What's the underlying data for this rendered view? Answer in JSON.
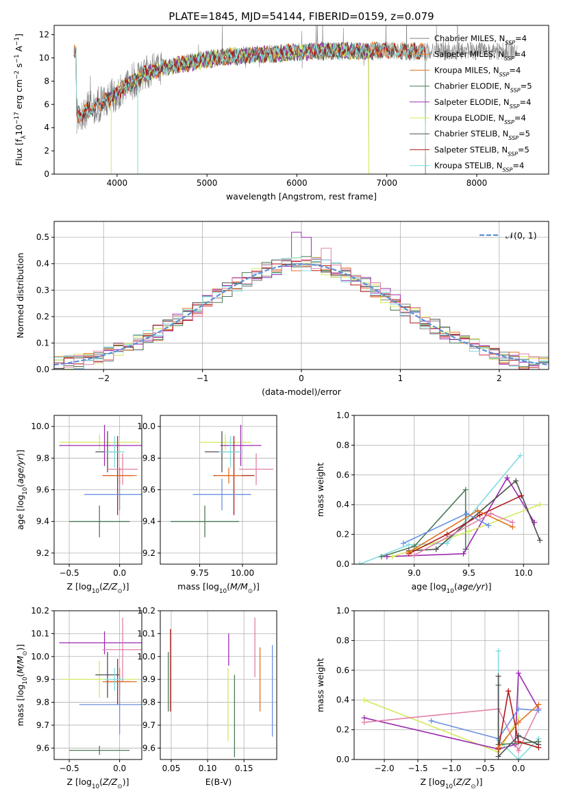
{
  "figure_title": "PLATE=1845, MJD=54144, FIBERID=0159, z=0.079",
  "colors": {
    "Chabrier MILES": "#808080",
    "Salpeter MILES": "#e68a2a",
    "Kroupa MILES": "#e07020",
    "Chabrier ELODIE": "#4a7a55",
    "Salpeter ELODIE": "#9a2ab0",
    "Kroupa ELODIE": "#d4e85a",
    "Chabrier STELIB": "#4d4d4d",
    "Salpeter STELIB": "#b01818",
    "Kroupa STELIB": "#7fdce0",
    "gaussian": "#5a8fd8",
    "extra_pink": "#e080a8",
    "extra_blue": "#6890e0"
  },
  "chart_data": [
    {
      "id": "spectrum",
      "type": "line",
      "title": "",
      "xlabel": "wavelength [Angstrom, rest frame]",
      "ylabel": "Flux [f_λ10^-17 erg cm^-2 s^-1 A^-1]",
      "xlim": [
        3300,
        8800
      ],
      "ylim": [
        0,
        12.8
      ],
      "xticks": [
        4000,
        5000,
        6000,
        7000,
        8000
      ],
      "yticks": [
        0,
        2,
        4,
        6,
        8,
        10,
        12
      ],
      "grid": false,
      "legend_position": "right",
      "legend": [
        "Chabrier MILES, N_SSP=4",
        "Salpeter MILES, N_SSP=4",
        "Kroupa MILES, N_SSP=4",
        "Chabrier ELODIE, N_SSP=5",
        "Salpeter ELODIE, N_SSP=4",
        "Kroupa ELODIE, N_SSP=4",
        "Chabrier STELIB, N_SSP=5",
        "Salpeter STELIB, N_SSP=5",
        "Kroupa STELIB, N_SSP=4"
      ],
      "continuum": {
        "x": [
          3550,
          3700,
          3900,
          4100,
          4300,
          4500,
          4800,
          5200,
          5600,
          6000,
          6400,
          6800,
          7200,
          7450
        ],
        "y": [
          5.0,
          5.6,
          6.4,
          7.6,
          8.6,
          9.1,
          9.6,
          10.1,
          10.3,
          10.5,
          10.6,
          10.6,
          10.6,
          10.5
        ]
      }
    },
    {
      "id": "residuals",
      "type": "line",
      "xlabel": "(data-model)/error",
      "ylabel": "Normed distribution",
      "xlim": [
        -2.5,
        2.5
      ],
      "ylim": [
        0,
        0.56
      ],
      "xticks": [
        -2,
        -1,
        0,
        1,
        2
      ],
      "yticks": [
        0.0,
        0.1,
        0.2,
        0.3,
        0.4,
        0.5
      ],
      "grid": true,
      "legend_position": "top-right",
      "legend": [
        "𝒩(0, 1)"
      ],
      "gaussian": {
        "mean": 0,
        "sigma": 1
      }
    },
    {
      "id": "age_vs_Z",
      "type": "scatter",
      "xlabel": "Z [log10(Z/Z⊙)]",
      "ylabel": "age [log10(age/yr)]",
      "xlim": [
        -0.65,
        0.22
      ],
      "ylim": [
        9.13,
        10.07
      ],
      "xticks": [
        -0.5,
        0.0
      ],
      "yticks": [
        9.2,
        9.4,
        9.6,
        9.8,
        10.0
      ],
      "grid": true,
      "points": [
        {
          "name": "Kroupa ELODIE",
          "x": -0.2,
          "y": 9.9,
          "xerr": 0.4,
          "yerr": 0.05
        },
        {
          "name": "Salpeter ELODIE",
          "x": -0.15,
          "y": 9.88,
          "xerr": 0.45,
          "yerr": 0.13
        },
        {
          "name": "Chabrier ELODIE",
          "x": -0.2,
          "y": 9.4,
          "xerr": 0.3,
          "yerr": 0.1
        },
        {
          "name": "Chabrier STELIB",
          "x": -0.12,
          "y": 9.84,
          "xerr": 0.12,
          "yerr": 0.13
        },
        {
          "name": "Salpeter STELIB",
          "x": -0.02,
          "y": 9.69,
          "xerr": 0.15,
          "yerr": 0.25
        },
        {
          "name": "extra_blue",
          "x": 0.0,
          "y": 9.57,
          "xerr": 0.35,
          "yerr": 0.1
        },
        {
          "name": "extra_pink",
          "x": 0.03,
          "y": 9.73,
          "xerr": 0.15,
          "yerr": 0.1
        },
        {
          "name": "Kroupa MILES",
          "x": 0.0,
          "y": 9.69,
          "xerr": 0.17,
          "yerr": 0.05
        },
        {
          "name": "Kroupa STELIB",
          "x": -0.05,
          "y": 9.84,
          "xerr": 0.1,
          "yerr": 0.1
        }
      ]
    },
    {
      "id": "age_vs_mass",
      "type": "scatter",
      "xlabel": "mass [log10(M/M⊙)]",
      "xlim": [
        9.52,
        10.2
      ],
      "ylim": [
        9.13,
        10.07
      ],
      "xticks": [
        9.75,
        10.0
      ],
      "yticks": [
        9.2,
        9.4,
        9.6,
        9.8,
        10.0
      ],
      "grid": true,
      "points": [
        {
          "name": "Kroupa ELODIE",
          "x": 9.9,
          "y": 9.9,
          "xerr": 0.15,
          "yerr": 0.05
        },
        {
          "name": "Salpeter ELODIE",
          "x": 9.99,
          "y": 9.88,
          "xerr": 0.12,
          "yerr": 0.13
        },
        {
          "name": "Chabrier ELODIE",
          "x": 9.78,
          "y": 9.4,
          "xerr": 0.2,
          "yerr": 0.1
        },
        {
          "name": "Chabrier STELIB",
          "x": 9.88,
          "y": 9.84,
          "xerr": 0.1,
          "yerr": 0.13
        },
        {
          "name": "Salpeter STELIB",
          "x": 9.95,
          "y": 9.69,
          "xerr": 0.12,
          "yerr": 0.25
        },
        {
          "name": "extra_blue",
          "x": 9.88,
          "y": 9.57,
          "xerr": 0.17,
          "yerr": 0.1
        },
        {
          "name": "extra_pink",
          "x": 10.08,
          "y": 9.73,
          "xerr": 0.1,
          "yerr": 0.1
        },
        {
          "name": "Kroupa MILES",
          "x": 9.92,
          "y": 9.69,
          "xerr": 0.08,
          "yerr": 0.05
        },
        {
          "name": "Kroupa STELIB",
          "x": 9.93,
          "y": 9.84,
          "xerr": 0.07,
          "yerr": 0.1
        }
      ]
    },
    {
      "id": "weight_vs_age",
      "type": "line",
      "xlabel": "age [log10(age/yr)]",
      "ylabel": "mass weight",
      "xlim": [
        8.45,
        10.23
      ],
      "ylim": [
        0,
        1.0
      ],
      "xticks": [
        9.0,
        9.5,
        10.0
      ],
      "yticks": [
        0.0,
        0.2,
        0.4,
        0.6,
        0.8,
        1.0
      ],
      "grid": true,
      "series": [
        {
          "name": "Kroupa STELIB",
          "x": [
            8.5,
            8.95,
            9.3,
            9.97
          ],
          "y": [
            0.0,
            0.13,
            0.14,
            0.73
          ]
        },
        {
          "name": "Chabrier ELODIE",
          "x": [
            8.7,
            9.0,
            9.47,
            9.47
          ],
          "y": [
            0.05,
            0.12,
            0.5,
            0.1
          ]
        },
        {
          "name": "Salpeter ELODIE",
          "x": [
            8.75,
            9.45,
            9.85,
            10.1
          ],
          "y": [
            0.05,
            0.07,
            0.58,
            0.28
          ]
        },
        {
          "name": "Kroupa ELODIE",
          "x": [
            8.8,
            9.5,
            10.15
          ],
          "y": [
            0.05,
            0.22,
            0.4
          ]
        },
        {
          "name": "Chabrier STELIB",
          "x": [
            8.95,
            9.2,
            9.93,
            10.15
          ],
          "y": [
            0.09,
            0.1,
            0.56,
            0.16
          ]
        },
        {
          "name": "Salpeter STELIB",
          "x": [
            8.95,
            9.3,
            9.6,
            9.98
          ],
          "y": [
            0.07,
            0.2,
            0.33,
            0.46
          ]
        },
        {
          "name": "extra_blue",
          "x": [
            8.9,
            9.48,
            9.68
          ],
          "y": [
            0.14,
            0.34,
            0.26
          ]
        },
        {
          "name": "Kroupa MILES",
          "x": [
            8.95,
            9.58,
            9.9
          ],
          "y": [
            0.08,
            0.36,
            0.25
          ]
        },
        {
          "name": "extra_pink",
          "x": [
            9.0,
            9.7,
            9.9
          ],
          "y": [
            0.06,
            0.34,
            0.28
          ]
        }
      ]
    },
    {
      "id": "mass_vs_Z",
      "type": "scatter",
      "xlabel": "Z [log10(Z/Z⊙)]",
      "ylabel": "mass [log10(M/M⊙)]",
      "xlim": [
        -0.65,
        0.22
      ],
      "ylim": [
        9.55,
        10.2
      ],
      "xticks": [
        -0.5,
        0.0
      ],
      "yticks": [
        9.6,
        9.7,
        9.8,
        9.9,
        10.0,
        10.1,
        10.2
      ],
      "grid": true,
      "points": [
        {
          "name": "Salpeter ELODIE",
          "x": -0.15,
          "y": 10.06,
          "xerr": 0.45,
          "yerr": 0.05
        },
        {
          "name": "extra_pink",
          "x": 0.03,
          "y": 10.03,
          "xerr": 0.2,
          "yerr": 0.14
        },
        {
          "name": "Kroupa ELODIE",
          "x": -0.2,
          "y": 9.9,
          "xerr": 0.38,
          "yerr": 0.08
        },
        {
          "name": "Chabrier STELIB",
          "x": -0.12,
          "y": 9.92,
          "xerr": 0.12,
          "yerr": 0.1
        },
        {
          "name": "Salpeter STELIB",
          "x": -0.02,
          "y": 9.89,
          "xerr": 0.12,
          "yerr": 0.1
        },
        {
          "name": "Kroupa MILES",
          "x": 0.0,
          "y": 9.89,
          "xerr": 0.17,
          "yerr": 0.06
        },
        {
          "name": "extra_blue",
          "x": 0.0,
          "y": 9.79,
          "xerr": 0.4,
          "yerr": 0.13
        },
        {
          "name": "Chabrier ELODIE",
          "x": -0.2,
          "y": 9.59,
          "xerr": 0.3,
          "yerr": 0.02
        },
        {
          "name": "Kroupa STELIB",
          "x": -0.05,
          "y": 9.9,
          "xerr": 0.1,
          "yerr": 0.05
        }
      ]
    },
    {
      "id": "mass_vs_EBV",
      "type": "scatter",
      "xlabel": "E(B-V)",
      "xlim": [
        0.035,
        0.195
      ],
      "ylim": [
        9.55,
        10.2
      ],
      "xticks": [
        0.05,
        0.1,
        0.15
      ],
      "yticks": [
        9.6,
        9.7,
        9.8,
        9.9,
        10.0,
        10.1,
        10.2
      ],
      "grid": true,
      "points": [
        {
          "name": "Salpeter STELIB",
          "x": 0.049,
          "y": 9.94,
          "xerr": 0,
          "yerr": 0.18
        },
        {
          "name": "Chabrier ELODIE",
          "x": 0.046,
          "y": 9.89,
          "xerr": 0,
          "yerr": 0.13
        },
        {
          "name": "Salpeter ELODIE",
          "x": 0.129,
          "y": 10.03,
          "xerr": 0,
          "yerr": 0.07
        },
        {
          "name": "Kroupa ELODIE",
          "x": 0.128,
          "y": 9.79,
          "xerr": 0,
          "yerr": 0.16
        },
        {
          "name": "Chabrier ELODIE",
          "x": 0.137,
          "y": 9.74,
          "xerr": 0,
          "yerr": 0.18
        },
        {
          "name": "extra_pink",
          "x": 0.165,
          "y": 10.04,
          "xerr": 0,
          "yerr": 0.13
        },
        {
          "name": "Kroupa MILES",
          "x": 0.172,
          "y": 9.9,
          "xerr": 0,
          "yerr": 0.14
        },
        {
          "name": "extra_blue",
          "x": 0.189,
          "y": 9.85,
          "xerr": 0,
          "yerr": 0.2
        }
      ]
    },
    {
      "id": "weight_vs_Z",
      "type": "line",
      "xlabel": "Z [log10(Z/Z⊙)]",
      "ylabel": "mass weight",
      "xlim": [
        -2.45,
        0.45
      ],
      "ylim": [
        0,
        1.0
      ],
      "xticks": [
        -2.0,
        -1.5,
        -1.0,
        -0.5,
        0.0
      ],
      "yticks": [
        0.0,
        0.2,
        0.4,
        0.6,
        0.8,
        1.0
      ],
      "grid": true,
      "series": [
        {
          "name": "Kroupa ELODIE",
          "x": [
            -2.3,
            -0.3,
            0.0
          ],
          "y": [
            0.4,
            0.05,
            0.28
          ]
        },
        {
          "name": "Salpeter ELODIE",
          "x": [
            -2.3,
            -0.3,
            -0.05,
            0.0,
            0.3
          ],
          "y": [
            0.28,
            0.07,
            0.1,
            0.58,
            0.34
          ]
        },
        {
          "name": "extra_pink",
          "x": [
            -2.3,
            -0.3,
            0.0,
            0.3
          ],
          "y": [
            0.25,
            0.34,
            0.06,
            0.34
          ]
        },
        {
          "name": "extra_blue",
          "x": [
            -1.3,
            -0.3,
            0.0,
            0.3
          ],
          "y": [
            0.26,
            0.14,
            0.34,
            0.33
          ]
        },
        {
          "name": "Kroupa STELIB",
          "x": [
            -0.3,
            -0.3,
            0.0,
            0.3
          ],
          "y": [
            0.73,
            0.13,
            0.0,
            0.14
          ]
        },
        {
          "name": "Chabrier ELODIE",
          "x": [
            -0.3,
            -0.3,
            0.3
          ],
          "y": [
            0.5,
            0.1,
            0.12
          ]
        },
        {
          "name": "Chabrier STELIB",
          "x": [
            -0.3,
            -0.3,
            0.0,
            0.3
          ],
          "y": [
            0.56,
            0.02,
            0.16,
            0.1
          ]
        },
        {
          "name": "Salpeter STELIB",
          "x": [
            -0.3,
            -0.15,
            0.0,
            0.3
          ],
          "y": [
            0.07,
            0.46,
            0.12,
            0.08
          ]
        },
        {
          "name": "Kroupa MILES",
          "x": [
            -0.3,
            0.0,
            0.3
          ],
          "y": [
            0.08,
            0.25,
            0.37
          ]
        }
      ]
    }
  ]
}
